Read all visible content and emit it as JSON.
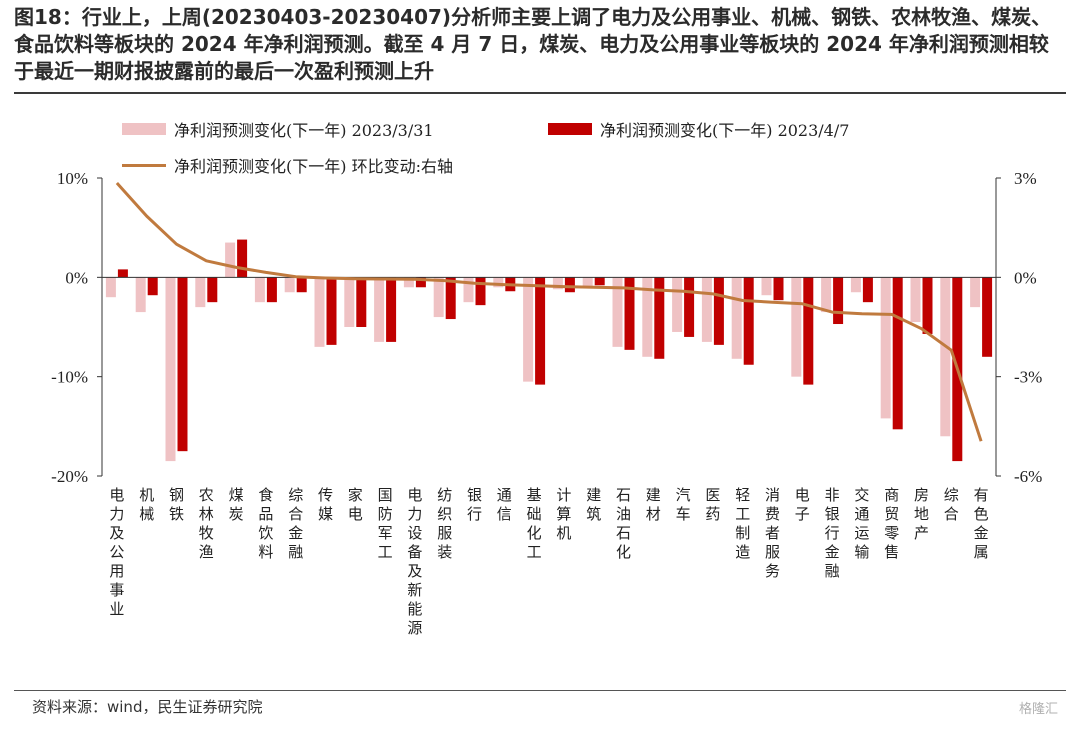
{
  "title": "图18：行业上，上周(20230403-20230407)分析师主要上调了电力及公用事业、机械、钢铁、农林牧渔、煤炭、食品饮料等板块的 2024 年净利润预测。截至 4 月 7 日，煤炭、电力及公用事业等板块的 2024 年净利润预测相较于最近一期财报披露前的最后一次盈利预测上升",
  "source": "资料来源：wind，民生证券研究院",
  "watermark": "格隆汇",
  "colors": {
    "series1": "#efc2c4",
    "series2": "#c00000",
    "series3": "#c07a3e"
  },
  "chart_data": {
    "type": "bar",
    "categories": [
      "电力及公用事业",
      "机械",
      "钢铁",
      "农林牧渔",
      "煤炭",
      "食品饮料",
      "综合金融",
      "传媒",
      "家电",
      "国防军工",
      "电力设备及新能源",
      "纺织服装",
      "银行",
      "通信",
      "基础化工",
      "计算机",
      "建筑",
      "石油石化",
      "建材",
      "汽车",
      "医药",
      "轻工制造",
      "消费者服务",
      "电子",
      "非银行金融",
      "交通运输",
      "商贸零售",
      "房地产",
      "综合",
      "有色金属"
    ],
    "series": [
      {
        "name": "净利润预测变化(下一年) 2023/3/31",
        "axis": "left",
        "values": [
          -2.0,
          -3.5,
          -18.5,
          -3.0,
          3.5,
          -2.5,
          -1.5,
          -7.0,
          -5.0,
          -6.5,
          -1.0,
          -4.0,
          -2.5,
          -1.0,
          -10.5,
          -1.2,
          -1.0,
          -7.0,
          -8.0,
          -5.5,
          -6.5,
          -8.2,
          -1.8,
          -10.0,
          -3.5,
          -1.5,
          -14.2,
          -4.5,
          -16.0,
          -3.0
        ]
      },
      {
        "name": "净利润预测变化(下一年) 2023/4/7",
        "axis": "left",
        "values": [
          0.8,
          -1.8,
          -17.5,
          -2.5,
          3.8,
          -2.5,
          -1.5,
          -6.8,
          -5.0,
          -6.5,
          -1.0,
          -4.2,
          -2.8,
          -1.4,
          -10.8,
          -1.5,
          -0.8,
          -7.3,
          -8.2,
          -6.0,
          -6.8,
          -8.8,
          -2.3,
          -10.8,
          -4.7,
          -2.5,
          -15.3,
          -5.7,
          -18.5,
          -8.0
        ]
      },
      {
        "name": "净利润预测变化(下一年) 环比变动:右轴",
        "axis": "right",
        "type": "line",
        "values": [
          2.85,
          1.85,
          1.0,
          0.5,
          0.3,
          0.15,
          0.02,
          -0.02,
          -0.04,
          -0.05,
          -0.06,
          -0.1,
          -0.18,
          -0.22,
          -0.25,
          -0.28,
          -0.3,
          -0.32,
          -0.38,
          -0.42,
          -0.5,
          -0.7,
          -0.75,
          -0.8,
          -1.05,
          -1.1,
          -1.12,
          -1.55,
          -2.2,
          -4.95
        ]
      }
    ],
    "y_left": {
      "ticks": [
        "10%",
        "0%",
        "-10%",
        "-20%"
      ],
      "ylim": [
        -20,
        10
      ]
    },
    "y_right": {
      "ticks": [
        "3%",
        "0%",
        "-3%",
        "-6%"
      ],
      "ylim": [
        -6,
        3
      ]
    },
    "grid": false,
    "legend": "top-left"
  }
}
